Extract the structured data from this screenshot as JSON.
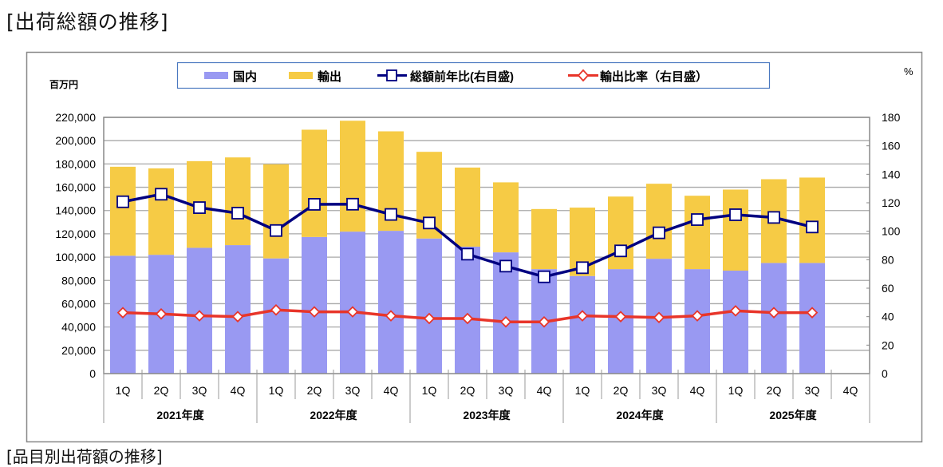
{
  "page": {
    "title": "[出荷総額の推移]",
    "next_section_title": "[品目別出荷額の推移]"
  },
  "colors": {
    "domestic": "#9999f2",
    "export": "#f6cb45",
    "yoy": "#000080",
    "export_ratio": "#e8352a"
  },
  "chart_data": {
    "type": "bar",
    "stacked": true,
    "title": "出荷総額の推移",
    "ylabel": "百万円",
    "y2label": "%",
    "ylim": [
      0,
      220000
    ],
    "y2lim": [
      0,
      180
    ],
    "yticks": [
      "0",
      "20,000",
      "40,000",
      "60,000",
      "80,000",
      "100,000",
      "120,000",
      "140,000",
      "160,000",
      "180,000",
      "200,000",
      "220,000"
    ],
    "y2ticks": [
      "0",
      "20",
      "40",
      "60",
      "80",
      "100",
      "120",
      "140",
      "160",
      "180"
    ],
    "grid": true,
    "legend_position": "top",
    "legend": [
      "国内",
      "輸出",
      "総額前年比(右目盛)",
      "輸出比率（右目盛）"
    ],
    "quarters": [
      "1Q",
      "2Q",
      "3Q",
      "4Q",
      "1Q",
      "2Q",
      "3Q",
      "4Q",
      "1Q",
      "2Q",
      "3Q",
      "4Q",
      "1Q",
      "2Q",
      "3Q",
      "4Q",
      "1Q",
      "2Q",
      "3Q",
      "4Q"
    ],
    "years": [
      "2021年度",
      "2022年度",
      "2023年度",
      "2024年度",
      "2025年度"
    ],
    "series": [
      {
        "name": "国内",
        "kind": "bar",
        "axis": "left",
        "values": [
          101200,
          102000,
          108000,
          110300,
          98900,
          117300,
          121900,
          122600,
          116000,
          109000,
          104100,
          89700,
          83800,
          89700,
          98600,
          89700,
          88400,
          95000,
          95000,
          null
        ]
      },
      {
        "name": "輸出",
        "kind": "bar",
        "axis": "left",
        "values": [
          76400,
          74200,
          74400,
          75300,
          80800,
          92100,
          95200,
          85400,
          74400,
          67900,
          60100,
          51600,
          58700,
          62300,
          64400,
          63000,
          69600,
          71900,
          73300,
          null
        ]
      },
      {
        "name": "総額前年比(右目盛)",
        "kind": "line",
        "axis": "right",
        "marker": "square",
        "values": [
          120.7,
          126.0,
          116.6,
          112.7,
          100.5,
          118.9,
          119.0,
          111.8,
          105.8,
          83.9,
          75.5,
          68.0,
          74.4,
          86.2,
          98.9,
          108.2,
          111.6,
          109.7,
          103.0,
          null
        ]
      },
      {
        "name": "輸出比率（右目盛）",
        "kind": "line",
        "axis": "right",
        "marker": "diamond",
        "values": [
          42.8,
          41.9,
          40.6,
          40.0,
          44.7,
          43.4,
          43.4,
          40.6,
          38.7,
          38.7,
          36.3,
          36.3,
          40.6,
          40.0,
          39.4,
          40.6,
          44.1,
          42.8,
          42.8,
          null
        ]
      }
    ]
  }
}
